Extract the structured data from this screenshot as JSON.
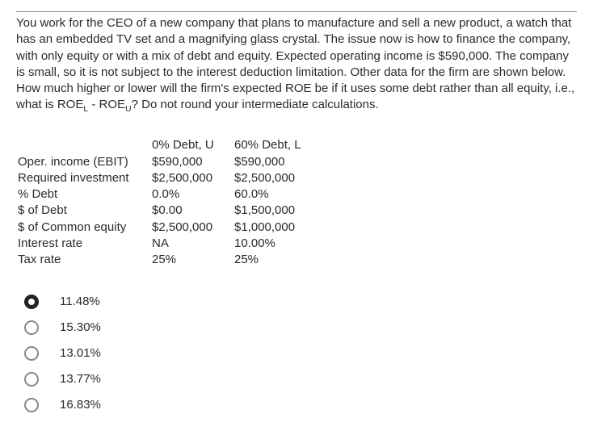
{
  "question": "You work for the CEO of a new company that plans to manufacture and sell a new product, a watch that has an embedded TV set and a magnifying glass crystal. The issue now is how to finance the company, with only equity or with a mix of debt and equity. Expected operating income is $590,000. The company is small, so it is not subject to the interest deduction limitation.  Other data for the firm are shown below. How much higher or lower will the firm's expected ROE be if it uses some debt rather than all equity, i.e., what is ROE",
  "question_sub1": "L",
  "question_mid": " - ROE",
  "question_sub2": "U",
  "question_end": "? Do not round your intermediate calculations.",
  "table": {
    "headers": [
      "",
      "0% Debt, U",
      "60% Debt, L"
    ],
    "rows": [
      [
        "Oper. income (EBIT)",
        "$590,000",
        "$590,000"
      ],
      [
        "Required investment",
        "$2,500,000",
        "$2,500,000"
      ],
      [
        "% Debt",
        "0.0%",
        "60.0%"
      ],
      [
        "$ of Debt",
        "$0.00",
        "$1,500,000"
      ],
      [
        "$ of Common equity",
        "$2,500,000",
        "$1,000,000"
      ],
      [
        "Interest rate",
        "NA",
        "10.00%"
      ],
      [
        "Tax rate",
        "25%",
        "25%"
      ]
    ]
  },
  "options": [
    {
      "label": "11.48%",
      "selected": true
    },
    {
      "label": "15.30%",
      "selected": false
    },
    {
      "label": "13.01%",
      "selected": false
    },
    {
      "label": "13.77%",
      "selected": false
    },
    {
      "label": "16.83%",
      "selected": false
    }
  ]
}
